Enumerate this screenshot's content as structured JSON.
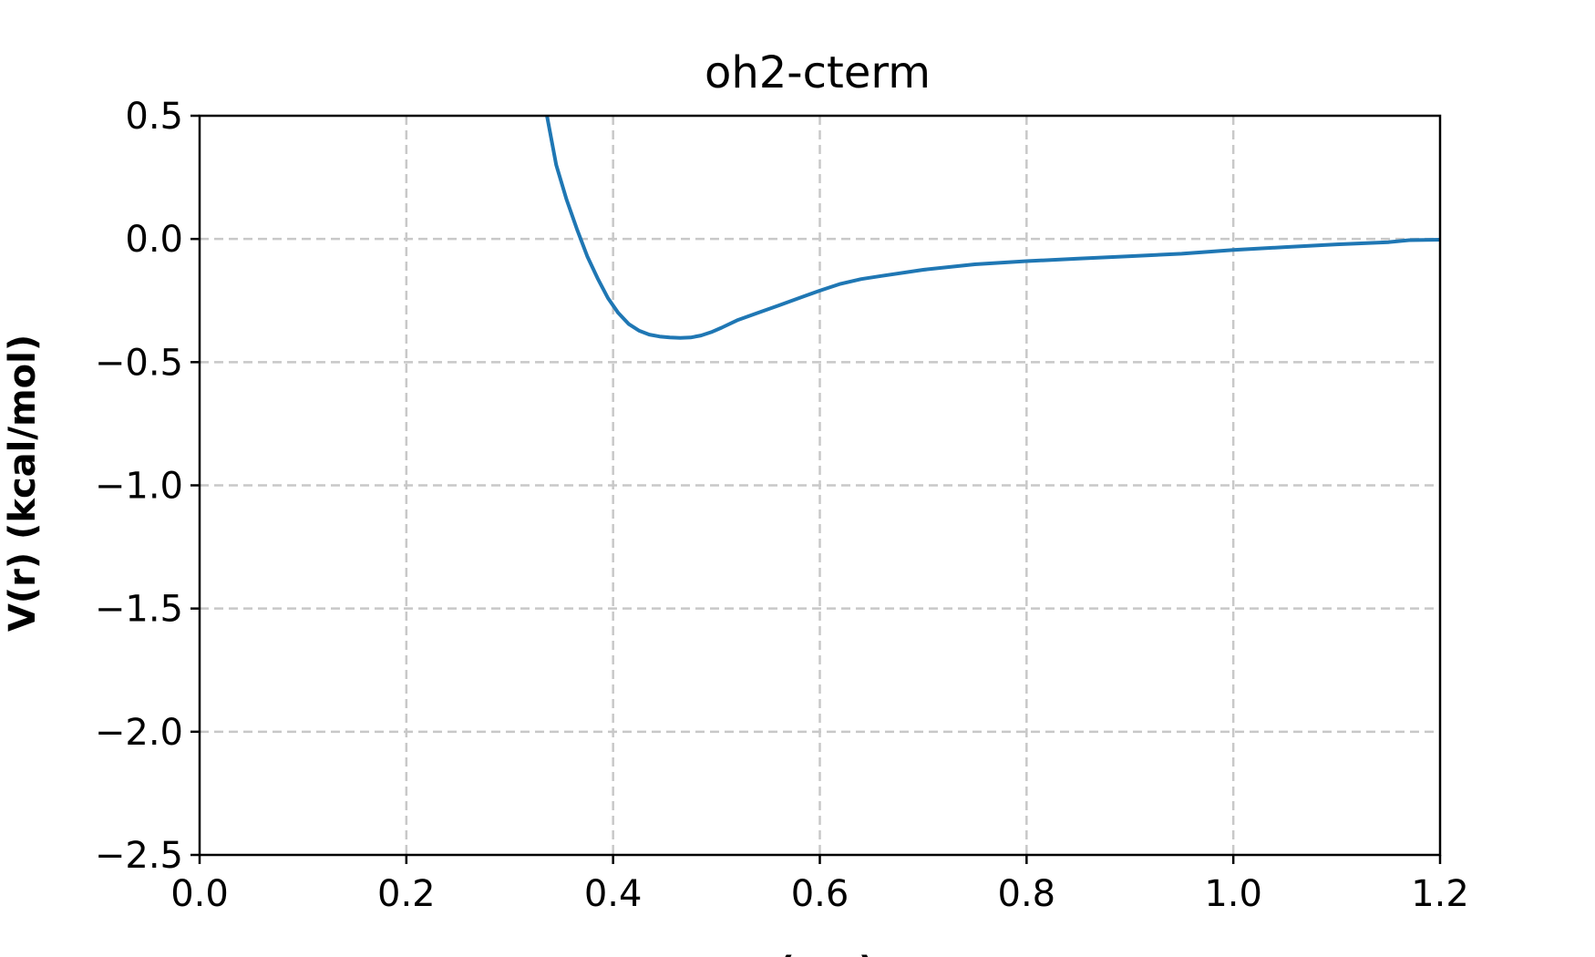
{
  "chart_data": {
    "type": "line",
    "title": "oh2-cterm",
    "xlabel": "r (nm)",
    "ylabel": "V(r) (kcal/mol)",
    "xlim": [
      0.0,
      1.2
    ],
    "ylim": [
      -2.5,
      0.5
    ],
    "xticks": [
      "0.0",
      "0.2",
      "0.4",
      "0.6",
      "0.8",
      "1.0",
      "1.2"
    ],
    "yticks": [
      "0.5",
      "0.0",
      "−0.5",
      "−1.0",
      "−1.5",
      "−2.0",
      "−2.5"
    ],
    "grid": true,
    "line_color": "#1f77b4",
    "series": [
      {
        "x": [
          0.336,
          0.345,
          0.355,
          0.365,
          0.375,
          0.385,
          0.395,
          0.405,
          0.415,
          0.425,
          0.435,
          0.445,
          0.455,
          0.465,
          0.475,
          0.485,
          0.495,
          0.505,
          0.52,
          0.54,
          0.56,
          0.58,
          0.6,
          0.62,
          0.64,
          0.66,
          0.7,
          0.75,
          0.8,
          0.85,
          0.9,
          0.95,
          1.0,
          1.05,
          1.1,
          1.15,
          1.17,
          1.2
        ],
        "y": [
          0.5,
          0.3,
          0.16,
          0.04,
          -0.07,
          -0.16,
          -0.24,
          -0.3,
          -0.345,
          -0.372,
          -0.388,
          -0.396,
          -0.4,
          -0.402,
          -0.4,
          -0.392,
          -0.378,
          -0.36,
          -0.33,
          -0.3,
          -0.27,
          -0.24,
          -0.21,
          -0.182,
          -0.163,
          -0.15,
          -0.125,
          -0.103,
          -0.09,
          -0.08,
          -0.07,
          -0.06,
          -0.045,
          -0.033,
          -0.022,
          -0.013,
          -0.005,
          -0.003
        ]
      }
    ]
  }
}
